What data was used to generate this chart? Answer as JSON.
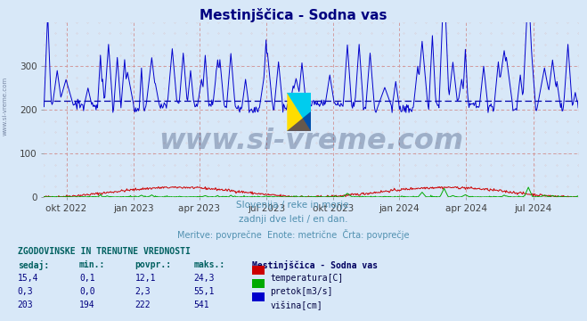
{
  "title": "Mestinjščica - Sodna vas",
  "title_color": "#000080",
  "bg_color": "#d8e8f8",
  "watermark": "www.si-vreme.com",
  "subtitle1": "Slovenija / reke in morje.",
  "subtitle2": "zadnji dve leti / en dan.",
  "subtitle3": "Meritve: povprečne  Enote: metrične  Črta: povprečje",
  "subtitle_color": "#5090b0",
  "x_tick_labels": [
    "okt 2022",
    "jan 2023",
    "apr 2023",
    "jul 2023",
    "okt 2023",
    "jan 2024",
    "apr 2024",
    "jul 2024"
  ],
  "x_tick_positions_frac": [
    0.042,
    0.168,
    0.291,
    0.417,
    0.541,
    0.665,
    0.79,
    0.916
  ],
  "yticks": [
    0,
    100,
    200,
    300
  ],
  "avg_visina": 222,
  "ymax": 400,
  "temp_color": "#cc0000",
  "pretok_color": "#00aa00",
  "visina_color": "#0000cc",
  "avg_color": "#0000aa",
  "table_title": "ZGODOVINSKE IN TRENUTNE VREDNOSTI",
  "col_headers": [
    "sedaj:",
    "min.:",
    "povpr.:",
    "maks.:"
  ],
  "row1": [
    "15,4",
    "0,1",
    "12,1",
    "24,3"
  ],
  "row2": [
    "0,3",
    "0,0",
    "2,3",
    "55,1"
  ],
  "row3": [
    "203",
    "194",
    "222",
    "541"
  ],
  "legend_station": "Mestinjščica - Sodna vas",
  "legend_items": [
    "temperatura[C]",
    "pretok[m3/s]",
    "višina[cm]"
  ],
  "legend_colors": [
    "#cc0000",
    "#00aa00",
    "#0000cc"
  ],
  "n_days": 730,
  "logo_yellow": "#ffdd00",
  "logo_cyan": "#00ccee",
  "logo_blue": "#000080"
}
